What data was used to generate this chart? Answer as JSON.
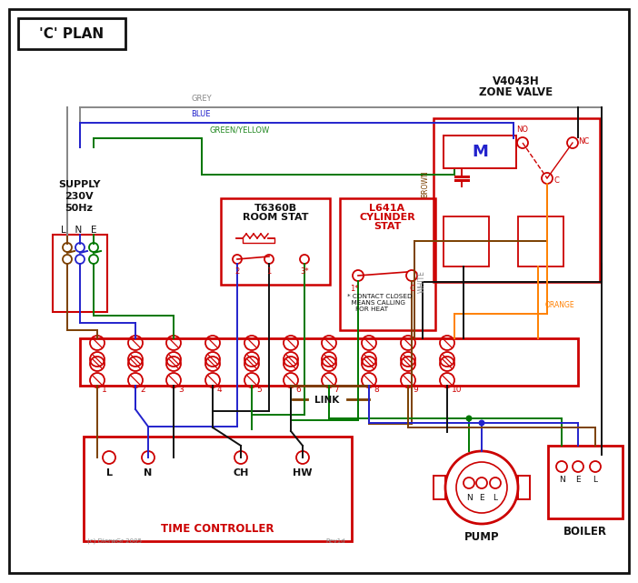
{
  "title": "'C' PLAN",
  "bg": "#ffffff",
  "red": "#cc0000",
  "blue": "#2222cc",
  "green": "#007700",
  "brown": "#7B3F00",
  "grey": "#888888",
  "orange": "#FF8000",
  "black": "#111111",
  "gy_wire": "#888888",
  "figw": 7.02,
  "figh": 6.41,
  "dpi": 100,
  "terminal_numbers": [
    "1",
    "2",
    "3",
    "4",
    "5",
    "6",
    "7",
    "8",
    "9",
    "10"
  ]
}
